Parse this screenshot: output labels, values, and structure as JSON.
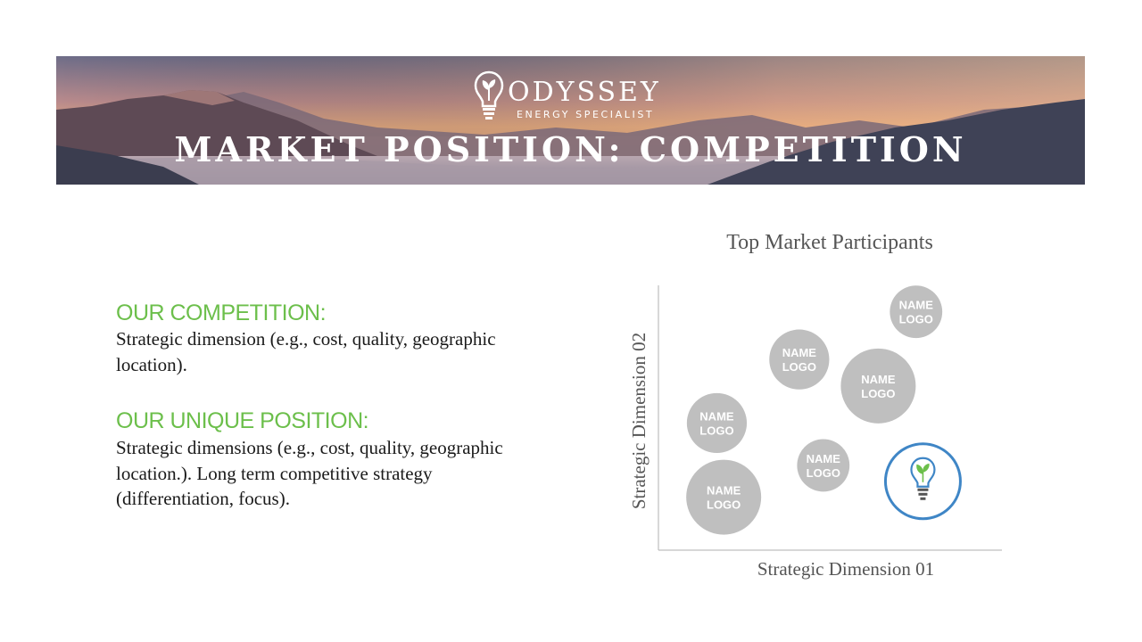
{
  "header": {
    "brand": "ODYSSEY",
    "tagline": "ENERGY SPECIALIST",
    "title": "MARKET POSITION: COMPETITION"
  },
  "sections": [
    {
      "title": "OUR COMPETITION:",
      "body": "Strategic dimension (e.g., cost, quality, geographic location)."
    },
    {
      "title": "OUR UNIQUE POSITION:",
      "body": "Strategic dimensions (e.g., cost, quality, geographic location.). Long term competitive strategy (differentiation, focus)."
    }
  ],
  "colors": {
    "section_title": "#6cbf4b",
    "bubble_fill": "#bfbfbf",
    "own_ring": "#3f86c6",
    "leaf": "#6cbf4b"
  },
  "chart_data": {
    "type": "scatter",
    "title": "Top Market Participants",
    "xlabel": "Strategic Dimension 01",
    "ylabel": "Strategic Dimension 02",
    "xlim": [
      0,
      10
    ],
    "ylim": [
      0,
      10
    ],
    "grid": false,
    "points": [
      {
        "label_line1": "NAME",
        "label_line2": "LOGO",
        "x": 7.5,
        "y": 9.0,
        "size": 0.7
      },
      {
        "label_line1": "NAME",
        "label_line2": "LOGO",
        "x": 4.1,
        "y": 7.2,
        "size": 0.8
      },
      {
        "label_line1": "NAME",
        "label_line2": "LOGO",
        "x": 6.4,
        "y": 6.2,
        "size": 1.0
      },
      {
        "label_line1": "NAME",
        "label_line2": "LOGO",
        "x": 1.7,
        "y": 4.8,
        "size": 0.8
      },
      {
        "label_line1": "NAME",
        "label_line2": "LOGO",
        "x": 4.8,
        "y": 3.2,
        "size": 0.7
      },
      {
        "label_line1": "NAME",
        "label_line2": "LOGO",
        "x": 1.9,
        "y": 2.0,
        "size": 1.0
      }
    ],
    "own_position": {
      "x": 7.7,
      "y": 2.6,
      "size": 1.0,
      "icon": "lightbulb-leaf-icon"
    }
  }
}
